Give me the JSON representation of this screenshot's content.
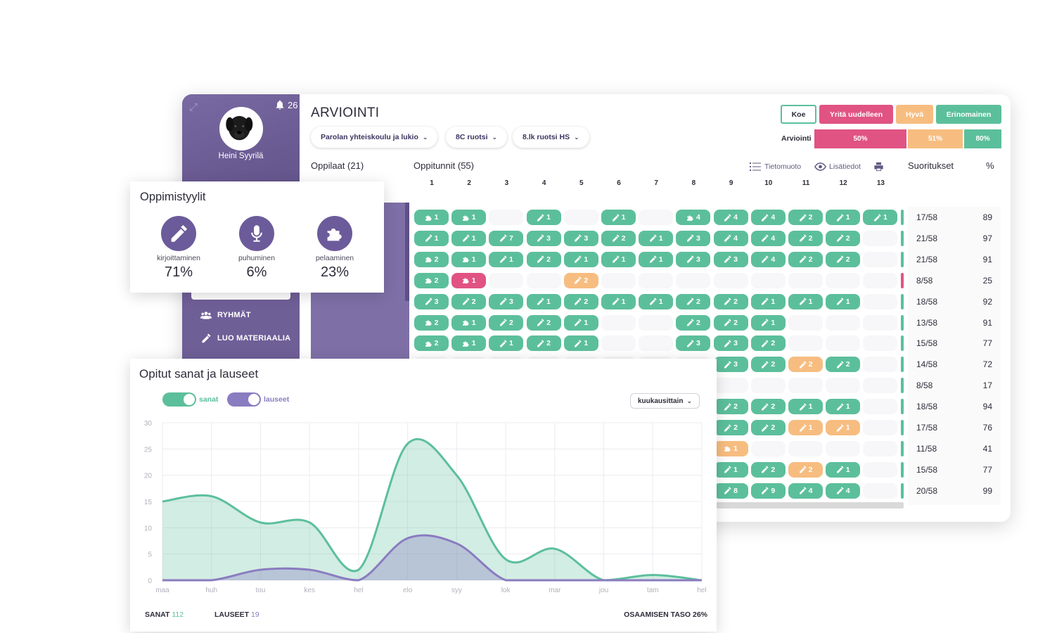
{
  "window": {
    "user": {
      "name": "Heini Syyrilä",
      "notifications": "26"
    },
    "nav": {
      "groups_label": "RYHMÄT",
      "create_label": "LUO MATERIAALIA"
    },
    "title": "ARVIOINTI",
    "filters": [
      {
        "label": "Parolan yhteiskoulu ja lukio"
      },
      {
        "label": "8C ruotsi"
      },
      {
        "label": "8.lk ruotsi HS"
      }
    ],
    "legend": {
      "koe": "Koe",
      "retry": "Yritä uudelleen",
      "good": "Hyvä",
      "excellent": "Erinomainen",
      "colors": {
        "koe": "#ffffff",
        "retry": "#e05383",
        "good": "#f7bd80",
        "excellent": "#5cbf9c"
      }
    },
    "arviointi": {
      "label": "Arviointi",
      "bars": [
        "50%",
        "51%",
        "80%"
      ]
    },
    "headers": {
      "students": "Oppilaat (21)",
      "lessons": "Oppitunnit (55)",
      "info": "Tietomuoto",
      "details": "Lisätiedot",
      "results": "Suoritukset",
      "percent": "%"
    },
    "lesson_numbers": [
      "1",
      "2",
      "3",
      "4",
      "5",
      "6",
      "7",
      "8",
      "9",
      "10",
      "11",
      "12",
      "13"
    ],
    "grid_rows": [
      [
        "g:game:1",
        "g:game:1",
        "",
        "g:pen:1",
        "",
        "g:pen:1",
        "",
        "g:game:4",
        "g:pen:4",
        "g:pen:4",
        "g:pen:2",
        "g:pen:1",
        "g:pen:1"
      ],
      [
        "g:pen:1",
        "g:pen:1",
        "g:pen:7",
        "g:pen:3",
        "g:pen:3",
        "g:pen:2",
        "g:pen:1",
        "g:pen:3",
        "g:pen:4",
        "g:pen:4",
        "g:pen:2",
        "g:pen:2",
        ""
      ],
      [
        "g:game:2",
        "g:game:1",
        "g:pen:1",
        "g:pen:2",
        "g:pen:1",
        "g:pen:1",
        "g:pen:1",
        "g:pen:3",
        "g:pen:3",
        "g:pen:4",
        "g:pen:2",
        "g:pen:2",
        ""
      ],
      [
        "g:game:2",
        "r:game:1",
        "",
        "",
        "o:pen:2",
        "",
        "",
        "",
        "",
        "",
        "",
        "",
        ""
      ],
      [
        "g:pen:3",
        "g:pen:2",
        "g:pen:3",
        "g:pen:1",
        "g:pen:2",
        "g:pen:1",
        "g:pen:1",
        "g:pen:2",
        "g:pen:2",
        "g:pen:1",
        "g:pen:1",
        "g:pen:1",
        ""
      ],
      [
        "g:game:2",
        "g:game:1",
        "g:pen:2",
        "g:pen:2",
        "g:pen:1",
        "",
        "",
        "g:pen:2",
        "g:pen:2",
        "g:pen:1",
        "",
        "",
        ""
      ],
      [
        "g:game:2",
        "g:game:1",
        "g:pen:1",
        "g:pen:2",
        "g:pen:1",
        "",
        "",
        "g:pen:3",
        "g:pen:3",
        "g:pen:2",
        "",
        "",
        ""
      ],
      [
        "",
        "",
        "",
        "",
        "",
        "",
        "",
        "",
        "g:pen:3",
        "g:pen:2",
        "o:pen:2",
        "g:pen:2",
        ""
      ],
      [
        "",
        "",
        "",
        "",
        "",
        "",
        "",
        "",
        "",
        "",
        "",
        "",
        ""
      ],
      [
        "",
        "",
        "",
        "",
        "",
        "",
        "",
        "",
        "g:pen:2",
        "g:pen:2",
        "g:pen:1",
        "g:pen:1",
        ""
      ],
      [
        "",
        "",
        "",
        "",
        "",
        "",
        "",
        "",
        "g:pen:2",
        "g:pen:2",
        "o:pen:1",
        "o:pen:1",
        ""
      ],
      [
        "",
        "",
        "",
        "",
        "",
        "",
        "",
        "",
        "o:game:1",
        "",
        "",
        "",
        ""
      ],
      [
        "",
        "",
        "",
        "",
        "",
        "",
        "",
        "",
        "g:pen:1",
        "g:pen:2",
        "o:pen:2",
        "g:pen:1",
        ""
      ],
      [
        "",
        "",
        "",
        "",
        "",
        "",
        "",
        "",
        "g:pen:8",
        "g:pen:9",
        "g:pen:4",
        "g:pen:4",
        ""
      ]
    ],
    "row_edges": [
      "g",
      "g",
      "g",
      "r",
      "g",
      "g",
      "g",
      "g",
      "g",
      "g",
      "g",
      "g",
      "g",
      "g"
    ],
    "results": [
      {
        "done": "17/58",
        "pct": "89"
      },
      {
        "done": "21/58",
        "pct": "97"
      },
      {
        "done": "21/58",
        "pct": "91"
      },
      {
        "done": "8/58",
        "pct": "25"
      },
      {
        "done": "18/58",
        "pct": "92"
      },
      {
        "done": "13/58",
        "pct": "91"
      },
      {
        "done": "15/58",
        "pct": "77"
      },
      {
        "done": "14/58",
        "pct": "72"
      },
      {
        "done": "8/58",
        "pct": "17"
      },
      {
        "done": "18/58",
        "pct": "94"
      },
      {
        "done": "17/58",
        "pct": "76"
      },
      {
        "done": "11/58",
        "pct": "41"
      },
      {
        "done": "15/58",
        "pct": "77"
      },
      {
        "done": "20/58",
        "pct": "99"
      }
    ]
  },
  "learning_styles": {
    "title": "Oppimistyylit",
    "items": [
      {
        "name": "kirjoittaminen",
        "pct": "71%",
        "icon": "pencil-icon"
      },
      {
        "name": "puhuminen",
        "pct": "6%",
        "icon": "microphone-icon"
      },
      {
        "name": "pelaaminen",
        "pct": "23%",
        "icon": "puzzle-icon"
      }
    ]
  },
  "words_card": {
    "title": "Opitut sanat ja lauseet",
    "toggle_words": "sanat",
    "toggle_sentences": "lauseet",
    "period": "kuukausittain",
    "footer": {
      "words_label": "SANAT",
      "words_value": "112",
      "sentences_label": "LAUSEET",
      "sentences_value": "19",
      "level_label": "OSAAMISEN TASO 26%"
    }
  },
  "chart_data": {
    "type": "area",
    "x": [
      "maa",
      "huh",
      "tou",
      "kes",
      "hel",
      "elo",
      "syy",
      "lok",
      "mar",
      "jou",
      "tam",
      "hel"
    ],
    "ylim": [
      0,
      30
    ],
    "yticks": [
      0,
      5,
      10,
      15,
      20,
      25,
      30
    ],
    "grid": true,
    "series": [
      {
        "name": "sanat",
        "color": "#5cbf9c",
        "values": [
          15,
          16,
          11,
          11,
          2,
          26,
          20,
          4,
          6,
          0,
          1,
          0
        ]
      },
      {
        "name": "lauseet",
        "color": "#8a7cc0",
        "values": [
          0,
          0,
          2,
          2,
          0,
          8,
          7,
          0,
          0,
          0,
          0,
          0
        ]
      }
    ]
  },
  "colors": {
    "green": "#5cbf9c",
    "pink": "#e05383",
    "orange": "#f7bd80",
    "purple": "#6f5f97"
  }
}
